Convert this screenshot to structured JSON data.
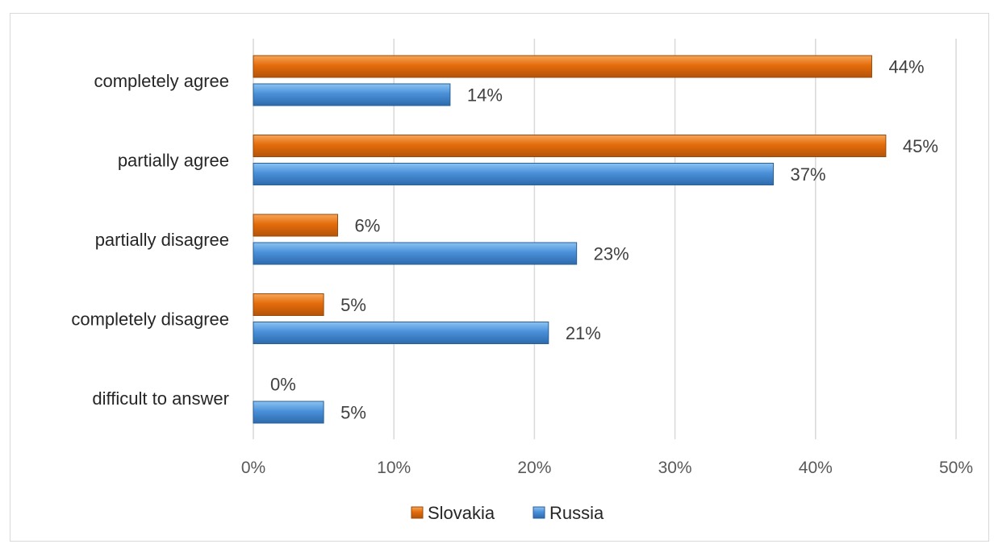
{
  "chart_data": {
    "type": "bar",
    "orientation": "horizontal",
    "categories": [
      "completely agree",
      "partially  agree",
      "partially disagree",
      "completely disagree",
      "difficult to answer"
    ],
    "series": [
      {
        "name": "Slovakia",
        "values": [
          44,
          45,
          6,
          5,
          0
        ],
        "labels": [
          "44%",
          "45%",
          "6%",
          "5%",
          "0%"
        ],
        "color": "#e46c0a"
      },
      {
        "name": "Russia",
        "values": [
          14,
          37,
          23,
          21,
          5
        ],
        "labels": [
          "14%",
          "37%",
          "23%",
          "21%",
          "5%"
        ],
        "color": "#4a90d9"
      }
    ],
    "xlim": [
      0,
      50
    ],
    "xticks": [
      0,
      10,
      20,
      30,
      40,
      50
    ],
    "xtick_labels": [
      "0%",
      "10%",
      "20%",
      "30%",
      "40%",
      "50%"
    ],
    "grid": true,
    "legend_position": "bottom",
    "title": "",
    "xlabel": "",
    "ylabel": ""
  }
}
